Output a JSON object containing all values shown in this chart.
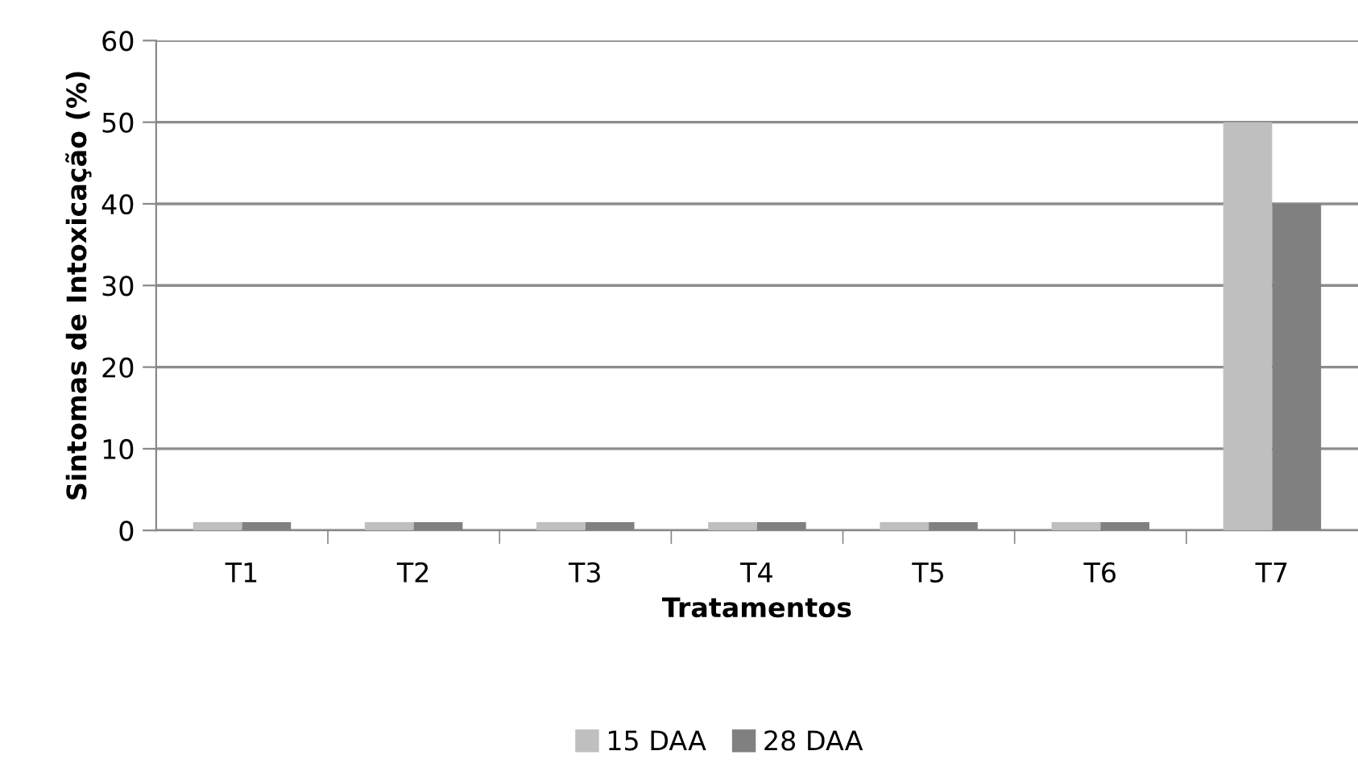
{
  "chart_data": {
    "type": "bar",
    "xlabel": "Tratamentos",
    "ylabel": "Sintomas de Intoxicação (%)",
    "categories": [
      "T1",
      "T2",
      "T3",
      "T4",
      "T5",
      "T6",
      "T7"
    ],
    "series": [
      {
        "name": "15 DAA",
        "color": "#bfbfbf",
        "values": [
          1,
          1,
          1,
          1,
          1,
          1,
          50
        ]
      },
      {
        "name": "28 DAA",
        "color": "#808080",
        "values": [
          1,
          1,
          1,
          1,
          1,
          1,
          40
        ]
      }
    ],
    "ylim": [
      0,
      60
    ],
    "yticks": [
      0,
      10,
      20,
      30,
      40,
      50,
      60
    ],
    "grid": "y",
    "legend": "bottom"
  }
}
